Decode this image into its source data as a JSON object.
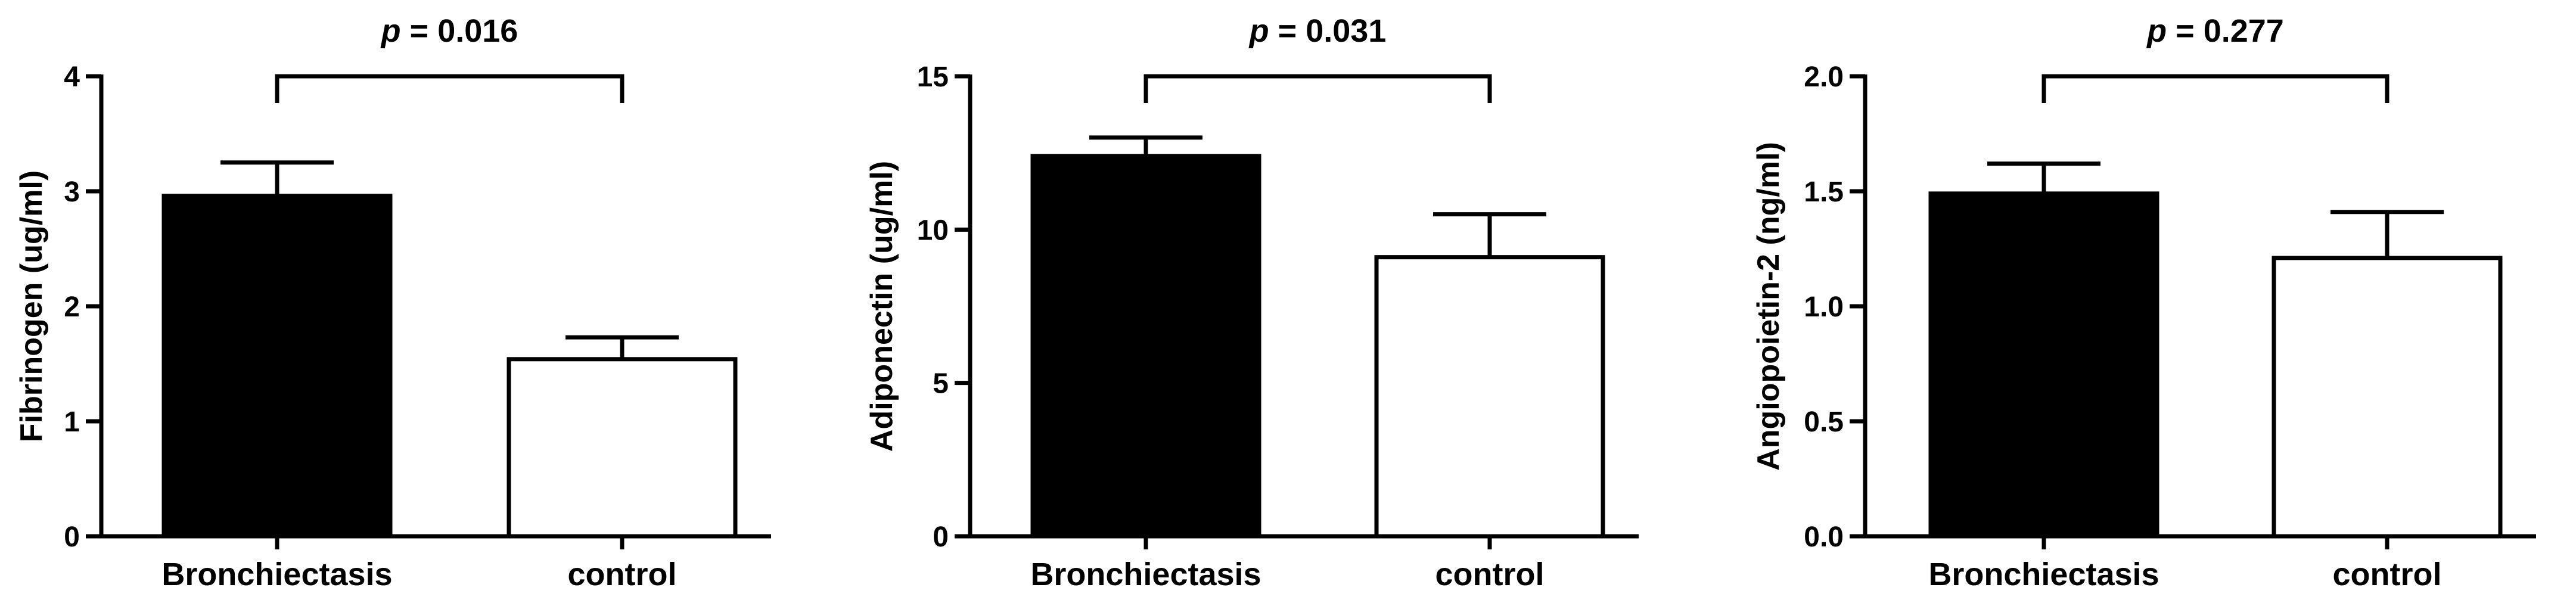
{
  "chart_data": [
    {
      "type": "bar",
      "categories": [
        "Bronchiectasis",
        "control"
      ],
      "values": [
        2.96,
        1.54
      ],
      "errors": [
        0.29,
        0.19
      ],
      "bar_colors": [
        "#000000",
        "#ffffff"
      ],
      "ylabel": "Fibrinogen (ug/ml)",
      "ylim": [
        0,
        4
      ],
      "yticks": [
        0,
        1,
        2,
        3,
        4
      ],
      "ytick_labels": [
        "0",
        "1",
        "2",
        "3",
        "4"
      ],
      "pvalue": {
        "prefix": "p",
        "text": " = 0.016"
      }
    },
    {
      "type": "bar",
      "categories": [
        "Bronchiectasis",
        "control"
      ],
      "values": [
        12.4,
        9.1
      ],
      "errors": [
        0.6,
        1.4
      ],
      "bar_colors": [
        "#000000",
        "#ffffff"
      ],
      "ylabel": "Adiponectin (ug/ml)",
      "ylim": [
        0,
        15
      ],
      "yticks": [
        0,
        5,
        10,
        15
      ],
      "ytick_labels": [
        "0",
        "5",
        "10",
        "15"
      ],
      "pvalue": {
        "prefix": "p",
        "text": " = 0.031"
      }
    },
    {
      "type": "bar",
      "categories": [
        "Bronchiectasis",
        "control"
      ],
      "values": [
        1.49,
        1.21
      ],
      "errors": [
        0.13,
        0.2
      ],
      "bar_colors": [
        "#000000",
        "#ffffff"
      ],
      "ylabel": "Angiopoietin-2 (ng/ml)",
      "ylim": [
        0,
        2
      ],
      "yticks": [
        0,
        0.5,
        1,
        1.5,
        2
      ],
      "ytick_labels": [
        "0.0",
        "0.5",
        "1.0",
        "1.5",
        "2.0"
      ],
      "pvalue": {
        "prefix": "p",
        "text": " = 0.277"
      }
    }
  ]
}
